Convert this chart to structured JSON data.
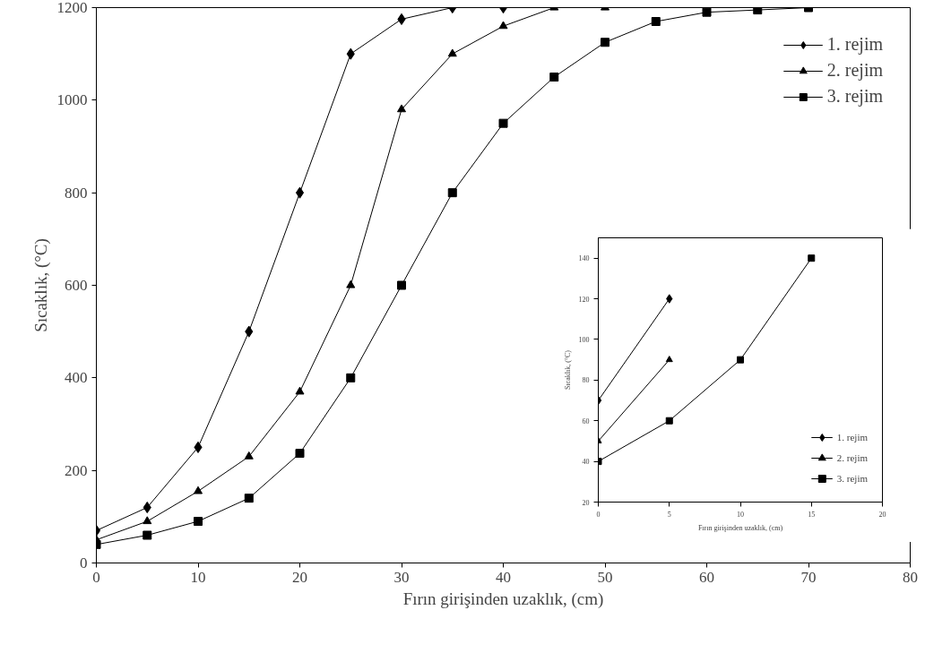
{
  "chart_data": [
    {
      "type": "line",
      "xlabel": "Fırın girişinden uzaklık, (cm)",
      "ylabel": "Sıcaklık, (°C)",
      "xlim": [
        0,
        80
      ],
      "xticks": [
        0,
        10,
        20,
        30,
        40,
        50,
        60,
        70,
        80
      ],
      "ylim": [
        0,
        1200
      ],
      "yticks": [
        0,
        200,
        400,
        600,
        800,
        1000,
        1200
      ],
      "grid": false,
      "legend": "top right",
      "line_style": "solid",
      "series": [
        {
          "name": "1. rejim",
          "color": "#000000",
          "marker": "diamond",
          "x": [
            0,
            5,
            10,
            15,
            20,
            25,
            30,
            35,
            40
          ],
          "values": [
            70,
            120,
            250,
            500,
            800,
            1100,
            1175,
            1200,
            1200
          ]
        },
        {
          "name": "2. rejim",
          "color": "#000000",
          "marker": "triangle",
          "x": [
            0,
            5,
            10,
            15,
            20,
            25,
            30,
            35,
            40,
            45,
            50
          ],
          "values": [
            50,
            90,
            155,
            230,
            370,
            600,
            980,
            1100,
            1160,
            1200,
            1200
          ]
        },
        {
          "name": "3. rejim",
          "color": "#000000",
          "marker": "square",
          "x": [
            0,
            5,
            10,
            15,
            20,
            25,
            30,
            35,
            40,
            45,
            50,
            55,
            60,
            65,
            70
          ],
          "values": [
            40,
            60,
            90,
            140,
            237,
            400,
            600,
            800,
            950,
            1050,
            1125,
            1170,
            1190,
            1195,
            1200
          ]
        }
      ]
    },
    {
      "type": "line",
      "xlabel": "Fırın girişinden uzaklık, (cm)",
      "ylabel": "Sıcaklık, (°C)",
      "xlim": [
        0,
        20
      ],
      "xticks": [
        0,
        5,
        10,
        15,
        20
      ],
      "ylim": [
        20,
        150
      ],
      "yticks": [
        20,
        40,
        60,
        80,
        100,
        120,
        140
      ],
      "grid": false,
      "legend": "bottom right",
      "line_style": "solid",
      "series": [
        {
          "name": "1. rejim",
          "color": "#000000",
          "marker": "diamond",
          "x": [
            0,
            5
          ],
          "values": [
            70,
            120
          ]
        },
        {
          "name": "2. rejim",
          "color": "#000000",
          "marker": "triangle",
          "x": [
            0,
            5
          ],
          "values": [
            50,
            90
          ]
        },
        {
          "name": "3. rejim",
          "color": "#000000",
          "marker": "square",
          "x": [
            0,
            5,
            10,
            15
          ],
          "values": [
            40,
            60,
            90,
            140
          ]
        }
      ]
    }
  ]
}
